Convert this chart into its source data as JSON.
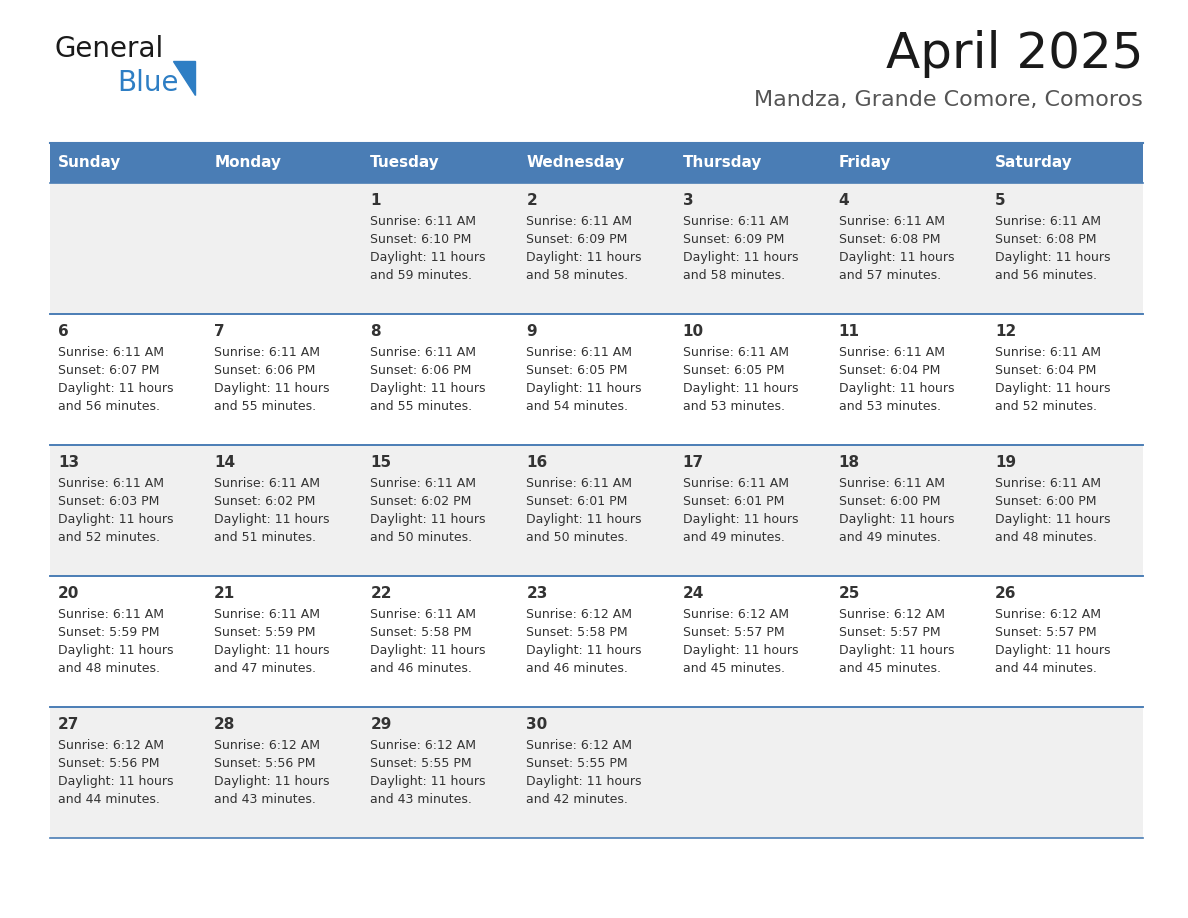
{
  "title": "April 2025",
  "subtitle": "Mandza, Grande Comore, Comoros",
  "header_bg": "#4a7db5",
  "header_text": "#ffffff",
  "row_bg_odd": "#f0f0f0",
  "row_bg_even": "#ffffff",
  "divider_color": "#4a7db5",
  "text_color": "#333333",
  "days_of_week": [
    "Sunday",
    "Monday",
    "Tuesday",
    "Wednesday",
    "Thursday",
    "Friday",
    "Saturday"
  ],
  "calendar_data": [
    [
      {
        "day": "",
        "sunrise": "",
        "sunset": "",
        "daylight": ""
      },
      {
        "day": "",
        "sunrise": "",
        "sunset": "",
        "daylight": ""
      },
      {
        "day": "1",
        "sunrise": "6:11 AM",
        "sunset": "6:10 PM",
        "daylight": "11 hours and 59 minutes."
      },
      {
        "day": "2",
        "sunrise": "6:11 AM",
        "sunset": "6:09 PM",
        "daylight": "11 hours and 58 minutes."
      },
      {
        "day": "3",
        "sunrise": "6:11 AM",
        "sunset": "6:09 PM",
        "daylight": "11 hours and 58 minutes."
      },
      {
        "day": "4",
        "sunrise": "6:11 AM",
        "sunset": "6:08 PM",
        "daylight": "11 hours and 57 minutes."
      },
      {
        "day": "5",
        "sunrise": "6:11 AM",
        "sunset": "6:08 PM",
        "daylight": "11 hours and 56 minutes."
      }
    ],
    [
      {
        "day": "6",
        "sunrise": "6:11 AM",
        "sunset": "6:07 PM",
        "daylight": "11 hours and 56 minutes."
      },
      {
        "day": "7",
        "sunrise": "6:11 AM",
        "sunset": "6:06 PM",
        "daylight": "11 hours and 55 minutes."
      },
      {
        "day": "8",
        "sunrise": "6:11 AM",
        "sunset": "6:06 PM",
        "daylight": "11 hours and 55 minutes."
      },
      {
        "day": "9",
        "sunrise": "6:11 AM",
        "sunset": "6:05 PM",
        "daylight": "11 hours and 54 minutes."
      },
      {
        "day": "10",
        "sunrise": "6:11 AM",
        "sunset": "6:05 PM",
        "daylight": "11 hours and 53 minutes."
      },
      {
        "day": "11",
        "sunrise": "6:11 AM",
        "sunset": "6:04 PM",
        "daylight": "11 hours and 53 minutes."
      },
      {
        "day": "12",
        "sunrise": "6:11 AM",
        "sunset": "6:04 PM",
        "daylight": "11 hours and 52 minutes."
      }
    ],
    [
      {
        "day": "13",
        "sunrise": "6:11 AM",
        "sunset": "6:03 PM",
        "daylight": "11 hours and 52 minutes."
      },
      {
        "day": "14",
        "sunrise": "6:11 AM",
        "sunset": "6:02 PM",
        "daylight": "11 hours and 51 minutes."
      },
      {
        "day": "15",
        "sunrise": "6:11 AM",
        "sunset": "6:02 PM",
        "daylight": "11 hours and 50 minutes."
      },
      {
        "day": "16",
        "sunrise": "6:11 AM",
        "sunset": "6:01 PM",
        "daylight": "11 hours and 50 minutes."
      },
      {
        "day": "17",
        "sunrise": "6:11 AM",
        "sunset": "6:01 PM",
        "daylight": "11 hours and 49 minutes."
      },
      {
        "day": "18",
        "sunrise": "6:11 AM",
        "sunset": "6:00 PM",
        "daylight": "11 hours and 49 minutes."
      },
      {
        "day": "19",
        "sunrise": "6:11 AM",
        "sunset": "6:00 PM",
        "daylight": "11 hours and 48 minutes."
      }
    ],
    [
      {
        "day": "20",
        "sunrise": "6:11 AM",
        "sunset": "5:59 PM",
        "daylight": "11 hours and 48 minutes."
      },
      {
        "day": "21",
        "sunrise": "6:11 AM",
        "sunset": "5:59 PM",
        "daylight": "11 hours and 47 minutes."
      },
      {
        "day": "22",
        "sunrise": "6:11 AM",
        "sunset": "5:58 PM",
        "daylight": "11 hours and 46 minutes."
      },
      {
        "day": "23",
        "sunrise": "6:12 AM",
        "sunset": "5:58 PM",
        "daylight": "11 hours and 46 minutes."
      },
      {
        "day": "24",
        "sunrise": "6:12 AM",
        "sunset": "5:57 PM",
        "daylight": "11 hours and 45 minutes."
      },
      {
        "day": "25",
        "sunrise": "6:12 AM",
        "sunset": "5:57 PM",
        "daylight": "11 hours and 45 minutes."
      },
      {
        "day": "26",
        "sunrise": "6:12 AM",
        "sunset": "5:57 PM",
        "daylight": "11 hours and 44 minutes."
      }
    ],
    [
      {
        "day": "27",
        "sunrise": "6:12 AM",
        "sunset": "5:56 PM",
        "daylight": "11 hours and 44 minutes."
      },
      {
        "day": "28",
        "sunrise": "6:12 AM",
        "sunset": "5:56 PM",
        "daylight": "11 hours and 43 minutes."
      },
      {
        "day": "29",
        "sunrise": "6:12 AM",
        "sunset": "5:55 PM",
        "daylight": "11 hours and 43 minutes."
      },
      {
        "day": "30",
        "sunrise": "6:12 AM",
        "sunset": "5:55 PM",
        "daylight": "11 hours and 42 minutes."
      },
      {
        "day": "",
        "sunrise": "",
        "sunset": "",
        "daylight": ""
      },
      {
        "day": "",
        "sunrise": "",
        "sunset": "",
        "daylight": ""
      },
      {
        "day": "",
        "sunrise": "",
        "sunset": "",
        "daylight": ""
      }
    ]
  ],
  "logo_color_general": "#1a1a1a",
  "logo_color_blue": "#2e7ec4",
  "logo_triangle_color": "#2e7ec4",
  "title_fontsize": 36,
  "subtitle_fontsize": 16,
  "header_fontsize": 11,
  "day_num_fontsize": 11,
  "cell_text_fontsize": 9
}
